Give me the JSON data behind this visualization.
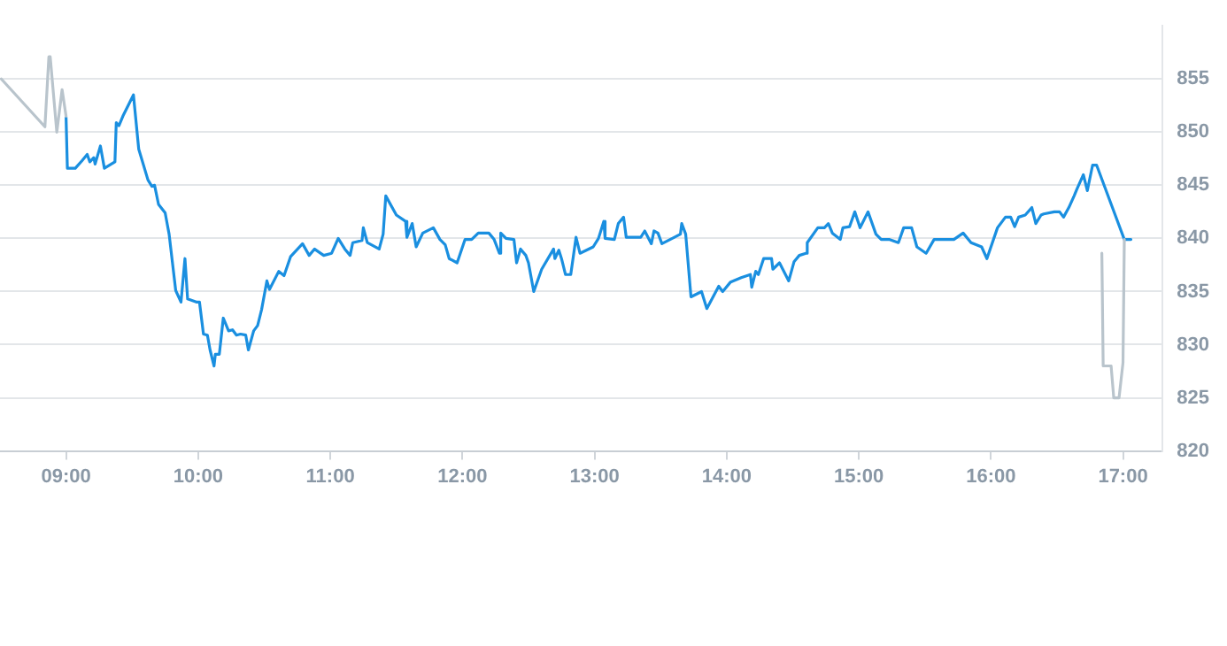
{
  "chart_data": {
    "type": "line",
    "xlim": [
      8.5,
      17.3
    ],
    "ylim": [
      820,
      860
    ],
    "xticks": [
      {
        "value": 9,
        "label": "09:00"
      },
      {
        "value": 10,
        "label": "10:00"
      },
      {
        "value": 11,
        "label": "11:00"
      },
      {
        "value": 12,
        "label": "12:00"
      },
      {
        "value": 13,
        "label": "13:00"
      },
      {
        "value": 14,
        "label": "14:00"
      },
      {
        "value": 15,
        "label": "15:00"
      },
      {
        "value": 16,
        "label": "16:00"
      },
      {
        "value": 17,
        "label": "17:00"
      }
    ],
    "yticks": [
      820,
      825,
      830,
      835,
      840,
      845,
      850,
      855
    ],
    "grid": "y",
    "legend": false,
    "marker": "none",
    "line_style": "solid",
    "series": [
      {
        "color": "#b9c4cc",
        "x": [
          8.51,
          8.84,
          8.87,
          8.88,
          8.93,
          8.97,
          9.0
        ],
        "values": [
          855.0,
          850.5,
          857.1,
          857.1,
          850.0,
          854.0,
          851.5
        ]
      },
      {
        "color": "#b9c4cc",
        "x": [
          16.84,
          16.85,
          16.91,
          16.93,
          16.97,
          17.0,
          17.01
        ],
        "values": [
          838.6,
          828.0,
          828.0,
          825.0,
          825.0,
          828.3,
          839.9
        ]
      },
      {
        "color": "#1a8fe0",
        "x": [
          9.0,
          9.01,
          9.07,
          9.12,
          9.16,
          9.18,
          9.21,
          9.22,
          9.26,
          9.29,
          9.37,
          9.38,
          9.4,
          9.43,
          9.51,
          9.55,
          9.62,
          9.65,
          9.67,
          9.7,
          9.75,
          9.78,
          9.83,
          9.87,
          9.9,
          9.92,
          9.99,
          10.01,
          10.04,
          10.07,
          10.09,
          10.12,
          10.13,
          10.16,
          10.19,
          10.23,
          10.26,
          10.29,
          10.32,
          10.36,
          10.38,
          10.42,
          10.45,
          10.48,
          10.52,
          10.54,
          10.61,
          10.65,
          10.7,
          10.79,
          10.84,
          10.88,
          10.95,
          11.01,
          11.06,
          11.11,
          11.15,
          11.17,
          11.24,
          11.25,
          11.28,
          11.37,
          11.4,
          11.42,
          11.5,
          11.57,
          11.58,
          11.62,
          11.65,
          11.7,
          11.78,
          11.83,
          11.87,
          11.9,
          11.96,
          12.02,
          12.07,
          12.12,
          12.2,
          12.24,
          12.28,
          12.29,
          12.33,
          12.39,
          12.41,
          12.44,
          12.48,
          12.5,
          12.54,
          12.6,
          12.69,
          12.7,
          12.73,
          12.75,
          12.78,
          12.82,
          12.86,
          12.89,
          12.99,
          13.03,
          13.07,
          13.08,
          13.15,
          13.18,
          13.22,
          13.24,
          13.35,
          13.38,
          13.43,
          13.45,
          13.48,
          13.51,
          13.65,
          13.66,
          13.69,
          13.73,
          13.81,
          13.85,
          13.94,
          13.97,
          14.03,
          14.11,
          14.18,
          14.19,
          14.22,
          14.24,
          14.28,
          14.34,
          14.35,
          14.4,
          14.47,
          14.51,
          14.55,
          14.6,
          14.61,
          14.69,
          14.74,
          14.77,
          14.8,
          14.86,
          14.88,
          14.93,
          14.97,
          15.01,
          15.07,
          15.13,
          15.17,
          15.23,
          15.3,
          15.34,
          15.4,
          15.44,
          15.51,
          15.57,
          15.72,
          15.79,
          15.85,
          15.93,
          15.97,
          16.05,
          16.11,
          16.15,
          16.18,
          16.21,
          16.26,
          16.31,
          16.34,
          16.38,
          16.4,
          16.48,
          16.52,
          16.55,
          16.59,
          16.63,
          16.65,
          16.7,
          16.73,
          16.77,
          16.8,
          17.01,
          17.06
        ],
        "values": [
          851.4,
          846.6,
          846.6,
          847.3,
          847.9,
          847.2,
          847.6,
          847.0,
          848.7,
          846.6,
          847.2,
          850.9,
          850.6,
          851.5,
          853.5,
          848.4,
          845.5,
          844.9,
          845.0,
          843.2,
          842.4,
          840.4,
          835.1,
          834.0,
          838.1,
          834.3,
          834.0,
          834.0,
          831.0,
          830.9,
          829.5,
          828.0,
          829.1,
          829.1,
          832.5,
          831.3,
          831.4,
          830.9,
          831.0,
          830.9,
          829.5,
          831.3,
          831.8,
          833.3,
          836.0,
          835.2,
          836.9,
          836.5,
          838.3,
          839.5,
          838.4,
          839.0,
          838.4,
          838.6,
          840.0,
          839.0,
          838.4,
          839.6,
          839.8,
          841.0,
          839.6,
          839.0,
          840.4,
          844.0,
          842.2,
          841.6,
          840.1,
          841.4,
          839.2,
          840.5,
          841.0,
          839.9,
          839.4,
          838.1,
          837.7,
          839.9,
          839.9,
          840.5,
          840.5,
          839.9,
          838.6,
          840.5,
          840.0,
          839.9,
          837.7,
          839.0,
          838.4,
          837.7,
          835.0,
          837.1,
          839.0,
          838.1,
          838.9,
          838.1,
          836.6,
          836.6,
          840.1,
          838.6,
          839.2,
          840.0,
          841.6,
          840.0,
          839.9,
          841.4,
          842.0,
          840.1,
          840.1,
          840.7,
          839.5,
          840.7,
          840.5,
          839.5,
          840.4,
          841.4,
          840.4,
          834.5,
          835.0,
          833.4,
          835.5,
          835.0,
          835.9,
          836.3,
          836.6,
          835.4,
          836.9,
          836.6,
          838.1,
          838.1,
          837.1,
          837.7,
          836.0,
          837.8,
          838.4,
          838.6,
          839.6,
          841.0,
          841.0,
          841.4,
          840.5,
          839.9,
          841.0,
          841.1,
          842.5,
          841.0,
          842.5,
          840.4,
          839.9,
          839.9,
          839.6,
          841.0,
          841.0,
          839.2,
          838.6,
          839.9,
          839.9,
          840.5,
          839.6,
          839.2,
          838.1,
          841.0,
          842.0,
          842.0,
          841.1,
          842.0,
          842.2,
          842.9,
          841.4,
          842.2,
          842.3,
          842.5,
          842.5,
          842.0,
          842.9,
          844.0,
          844.6,
          846.0,
          844.5,
          846.9,
          846.9,
          839.9,
          839.9
        ]
      }
    ]
  }
}
